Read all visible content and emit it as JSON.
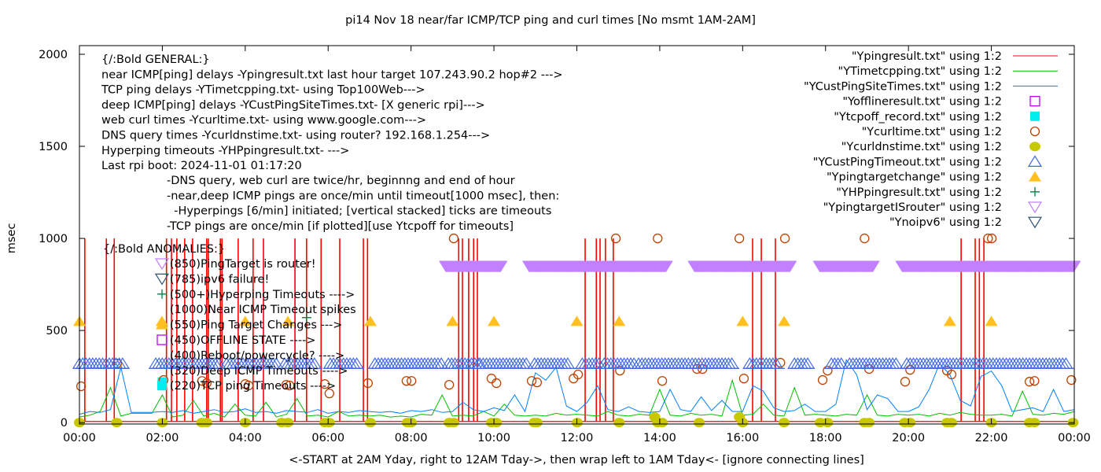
{
  "chart_data": {
    "type": "line",
    "title": "pi14 Nov 18  near/far ICMP/TCP ping and curl times [No msmt 1AM-2AM]",
    "xlabel": "<-START at 2AM Yday, right to 12AM Tday->, then wrap left to 1AM Tday<- [ignore connecting lines]",
    "ylabel": "msec",
    "xlim": [
      0,
      24
    ],
    "ylim": [
      -8,
      2047
    ],
    "x_unit": "hours",
    "xticks": [
      {
        "value": 0,
        "label": "00:00"
      },
      {
        "value": 2,
        "label": "02:00"
      },
      {
        "value": 4,
        "label": "04:00"
      },
      {
        "value": 6,
        "label": "06:00"
      },
      {
        "value": 8,
        "label": "08:00"
      },
      {
        "value": 10,
        "label": "10:00"
      },
      {
        "value": 12,
        "label": "12:00"
      },
      {
        "value": 14,
        "label": "14:00"
      },
      {
        "value": 16,
        "label": "16:00"
      },
      {
        "value": 18,
        "label": "18:00"
      },
      {
        "value": 20,
        "label": "20:00"
      },
      {
        "value": 22,
        "label": "22:00"
      },
      {
        "value": 24,
        "label": "00:00"
      }
    ],
    "yticks": [
      {
        "value": 0,
        "label": "0"
      },
      {
        "value": 500,
        "label": "500"
      },
      {
        "value": 1000,
        "label": "1000"
      },
      {
        "value": 1500,
        "label": "1500"
      },
      {
        "value": 2000,
        "label": "2000"
      }
    ],
    "grid": false,
    "legend_position": "top-right",
    "series": [
      {
        "key": "ypingresult",
        "name": "\"Ypingresult.txt\" using 1:2",
        "style": "line",
        "color": "#ff0000",
        "baseline": 6,
        "spike_value": 1000,
        "spike_times": [
          0.13,
          0.65,
          0.84,
          2.1,
          2.22,
          2.35,
          2.54,
          2.73,
          3.07,
          3.11,
          3.4,
          3.44,
          3.83,
          4.19,
          4.44,
          5.2,
          5.48,
          5.83,
          6.28,
          6.85,
          6.95,
          9.15,
          9.24,
          9.39,
          9.51,
          9.6,
          12.2,
          12.47,
          12.56,
          12.69,
          12.88,
          16.24,
          16.45,
          16.79,
          21.27,
          21.61,
          21.71,
          21.82
        ]
      },
      {
        "key": "ytimetcpping",
        "name": "\"YTimetcpping.txt\" using 1:2",
        "style": "line",
        "color": "#00c000",
        "x_start": 0,
        "x_step": 0.25,
        "values": [
          30,
          40,
          60,
          190,
          35,
          50,
          50,
          50,
          150,
          30,
          40,
          120,
          35,
          50,
          30,
          100,
          40,
          35,
          110,
          30,
          45,
          130,
          35,
          40,
          30,
          60,
          35,
          40,
          35,
          40,
          30,
          35,
          30,
          45,
          40,
          150,
          35,
          40,
          35,
          60,
          35,
          100,
          40,
          35,
          40,
          35,
          50,
          40,
          45,
          40,
          35,
          60,
          40,
          35,
          45,
          40,
          180,
          40,
          35,
          50,
          40,
          45,
          35,
          230,
          40,
          45,
          100,
          40,
          35,
          190,
          40,
          45,
          40,
          35,
          45,
          40,
          150,
          40,
          35,
          45,
          40,
          45,
          35,
          50,
          40,
          55,
          45,
          40,
          40,
          45,
          35,
          170,
          45,
          40,
          50,
          45,
          60
        ]
      },
      {
        "key": "ycustpingsitetimes",
        "name": "\"YCustPingSiteTimes.txt\" using 1:2",
        "style": "line",
        "color": "#0080ff",
        "x_start": 0,
        "x_step": 0.25,
        "values": [
          45,
          60,
          55,
          70,
          300,
          55,
          55,
          55,
          60,
          55,
          65,
          50,
          60,
          70,
          55,
          60,
          75,
          55,
          60,
          50,
          65,
          60,
          55,
          70,
          50,
          60,
          55,
          65,
          60,
          55,
          60,
          50,
          65,
          60,
          70,
          55,
          60,
          110,
          70,
          60,
          80,
          65,
          150,
          60,
          270,
          230,
          300,
          90,
          60,
          110,
          200,
          70,
          60,
          85,
          60,
          55,
          60,
          180,
          70,
          60,
          140,
          65,
          120,
          60,
          60,
          200,
          170,
          80,
          60,
          65,
          100,
          60,
          60,
          100,
          340,
          260,
          70,
          150,
          130,
          60,
          60,
          85,
          180,
          320,
          260,
          120,
          90,
          250,
          280,
          200,
          60,
          70,
          80,
          60,
          180,
          60,
          70
        ]
      },
      {
        "key": "yofflineresult",
        "name": "\"Yofflineresult.txt\" using 1:2",
        "style": "open-square",
        "color": "#c000ff",
        "points": []
      },
      {
        "key": "ytcpoff",
        "name": "\"Ytcpoff_record.txt\" using 1:2",
        "style": "filled-square",
        "color": "#00eeee",
        "points": [
          [
            2.0,
            220
          ]
        ]
      },
      {
        "key": "ycurltime",
        "name": "\"Ycurltime.txt\" using 1:2",
        "style": "open-circle",
        "color": "#c04000",
        "points": [
          [
            0.04,
            197
          ],
          [
            0.91,
            321
          ],
          [
            2.03,
            231
          ],
          [
            2.96,
            226
          ],
          [
            3.07,
            214
          ],
          [
            4.0,
            209
          ],
          [
            4.08,
            201
          ],
          [
            4.99,
            205
          ],
          [
            5.07,
            201
          ],
          [
            5.92,
            209
          ],
          [
            6.03,
            158
          ],
          [
            6.96,
            214
          ],
          [
            7.89,
            226
          ],
          [
            8.01,
            226
          ],
          [
            8.92,
            205
          ],
          [
            9.03,
            1000
          ],
          [
            9.94,
            239
          ],
          [
            10.06,
            214
          ],
          [
            10.91,
            226
          ],
          [
            11.04,
            218
          ],
          [
            11.92,
            239
          ],
          [
            12.03,
            261
          ],
          [
            12.94,
            1000
          ],
          [
            13.04,
            282
          ],
          [
            13.95,
            1000
          ],
          [
            14.06,
            226
          ],
          [
            14.9,
            291
          ],
          [
            15.03,
            291
          ],
          [
            15.92,
            1000
          ],
          [
            16.03,
            239
          ],
          [
            16.91,
            325
          ],
          [
            17.02,
            1000
          ],
          [
            17.93,
            231
          ],
          [
            18.05,
            282
          ],
          [
            18.94,
            1000
          ],
          [
            19.05,
            291
          ],
          [
            19.92,
            222
          ],
          [
            20.04,
            286
          ],
          [
            20.93,
            282
          ],
          [
            21.04,
            261
          ],
          [
            21.92,
            1000
          ],
          [
            22.01,
            1000
          ],
          [
            22.92,
            222
          ],
          [
            23.04,
            226
          ],
          [
            23.93,
            231
          ]
        ]
      },
      {
        "key": "ycurldnstime",
        "name": "\"Ycurldnstime.txt\" using 1:2",
        "style": "filled-circle",
        "color": "#c8c800",
        "points": [
          [
            0,
            0
          ],
          [
            0.9,
            0
          ],
          [
            2.0,
            0
          ],
          [
            2.95,
            0
          ],
          [
            3.07,
            0
          ],
          [
            4.0,
            0
          ],
          [
            4.88,
            0
          ],
          [
            5.03,
            0
          ],
          [
            5.92,
            0
          ],
          [
            6.03,
            0
          ],
          [
            7.02,
            0
          ],
          [
            7.91,
            0
          ],
          [
            8.01,
            0
          ],
          [
            8.92,
            0
          ],
          [
            9.03,
            0
          ],
          [
            9.94,
            0
          ],
          [
            10.06,
            0
          ],
          [
            10.97,
            0
          ],
          [
            11.04,
            0
          ],
          [
            12.01,
            0
          ],
          [
            13.02,
            0
          ],
          [
            13.88,
            30
          ],
          [
            13.95,
            0
          ],
          [
            14.06,
            0
          ],
          [
            14.95,
            0
          ],
          [
            15.92,
            30
          ],
          [
            16.0,
            0
          ],
          [
            17.0,
            0
          ],
          [
            17.87,
            0
          ],
          [
            18.05,
            0
          ],
          [
            18.94,
            0
          ],
          [
            19.05,
            0
          ],
          [
            19.91,
            0
          ],
          [
            20.04,
            0
          ],
          [
            20.93,
            0
          ],
          [
            21.04,
            0
          ],
          [
            22.0,
            0
          ],
          [
            22.92,
            0
          ],
          [
            23.04,
            0
          ],
          [
            23.97,
            0
          ]
        ]
      },
      {
        "key": "ycustpingtimeout",
        "name": "\"YCustPingTimeout.txt\" using 1:2",
        "style": "open-triangle",
        "color": "#4169e1",
        "value": 320,
        "ranges": [
          [
            0,
            1.06
          ],
          [
            1.84,
            3.36
          ],
          [
            3.55,
            4.82
          ],
          [
            4.95,
            5.71
          ],
          [
            6.05,
            6.72
          ],
          [
            7.13,
            8.8
          ],
          [
            8.9,
            9.62
          ],
          [
            9.66,
            10.85
          ],
          [
            10.98,
            11.84
          ],
          [
            12.13,
            12.56
          ],
          [
            12.66,
            13.42
          ],
          [
            13.49,
            14.74
          ],
          [
            14.78,
            15.77
          ],
          [
            16.17,
            16.87
          ],
          [
            17.25,
            17.59
          ],
          [
            18.14,
            18.44
          ],
          [
            18.58,
            19.75
          ],
          [
            19.96,
            23.85
          ]
        ]
      },
      {
        "key": "ypingtargetchange",
        "name": "\"Ypingtargetchange\" using 1:2",
        "style": "filled-triangle",
        "color": "#ffc020",
        "points": [
          [
            0,
            550
          ],
          [
            1.99,
            550
          ],
          [
            4.0,
            550
          ],
          [
            5.03,
            550
          ],
          [
            7.02,
            550
          ],
          [
            9.0,
            550
          ],
          [
            10.0,
            550
          ],
          [
            12.0,
            550
          ],
          [
            13.02,
            550
          ],
          [
            16.0,
            550
          ],
          [
            17.0,
            550
          ],
          [
            21.0,
            550
          ],
          [
            22.0,
            550
          ]
        ]
      },
      {
        "key": "yhppingresult",
        "name": "\"YHPpingresult.txt\" using 1:2",
        "style": "plus",
        "color": "#008040",
        "points": [
          [
            5.48,
            570
          ]
        ]
      },
      {
        "key": "ypingtargetisrouter",
        "name": "\"YpingtargetISrouter\" using 1:2",
        "style": "open-down-triangle",
        "color": "#c080ff",
        "value": 850,
        "ranges": [
          [
            8.84,
            10.17
          ],
          [
            10.85,
            14.16
          ],
          [
            14.84,
            17.15
          ],
          [
            17.86,
            19.15
          ],
          [
            19.85,
            24.0
          ]
        ]
      },
      {
        "key": "ynoipv6",
        "name": "\"Ynoipv6\" using 1:2",
        "style": "open-down-triangle",
        "color": "#2f4f6f",
        "points": []
      }
    ],
    "annotations": {
      "general": [
        "{/:Bold GENERAL:}",
        "near ICMP[ping] delays -Ypingresult.txt last hour target 107.243.90.2 hop#2 --->",
        "TCP ping delays -YTimetcpping.txt- using Top100Web--->",
        "deep ICMP[ping] delays -YCustPingSiteTimes.txt- [X generic rpi]--->",
        "web curl times -Ycurltime.txt- using www.google.com--->",
        "DNS query times -Ycurldnstime.txt- using router? 192.168.1.254--->",
        "Hyperping timeouts -YHPpingresult.txt- --->",
        "Last rpi boot: 2024-11-01 01:17:20"
      ],
      "notes": [
        "-DNS query, web curl are twice/hr, beginnng and end of hour",
        "-near,deep ICMP pings are once/min until timeout[1000 msec], then:",
        "  -Hyperpings [6/min] initiated; [vertical stacked] ticks are timeouts",
        "-TCP pings are once/min [if plotted][use Ytcpoff for timeouts]"
      ],
      "anomalies_title": "{/:Bold ANOMALIES:}",
      "anomalies": [
        {
          "marker": "open-down-triangle",
          "color": "#c080ff",
          "text": "(850)PingTarget is router!"
        },
        {
          "marker": "open-down-triangle",
          "color": "#2f4f6f",
          "text": "(785)ipv6 failure!"
        },
        {
          "marker": "plus",
          "color": "#008040",
          "text": "(500+)Hyperping Timeouts ---->"
        },
        {
          "marker": "",
          "color": "",
          "text": "(1000)Near ICMP Timeout spikes"
        },
        {
          "marker": "filled-triangle",
          "color": "#ffc020",
          "text": "(550)Ping Target Changes --->"
        },
        {
          "marker": "open-square",
          "color": "#c000ff",
          "text": "(450)OFFLINE STATE ---->"
        },
        {
          "marker": "",
          "color": "",
          "text": "(400)Reboot/powercycle? ---->"
        },
        {
          "marker": "",
          "color": "",
          "text": "(320)Deep ICMP Timeouts ---->"
        },
        {
          "marker": "filled-square",
          "color": "#00eeee",
          "text": "(220)TCP ping Timeouts ---->"
        }
      ]
    }
  }
}
